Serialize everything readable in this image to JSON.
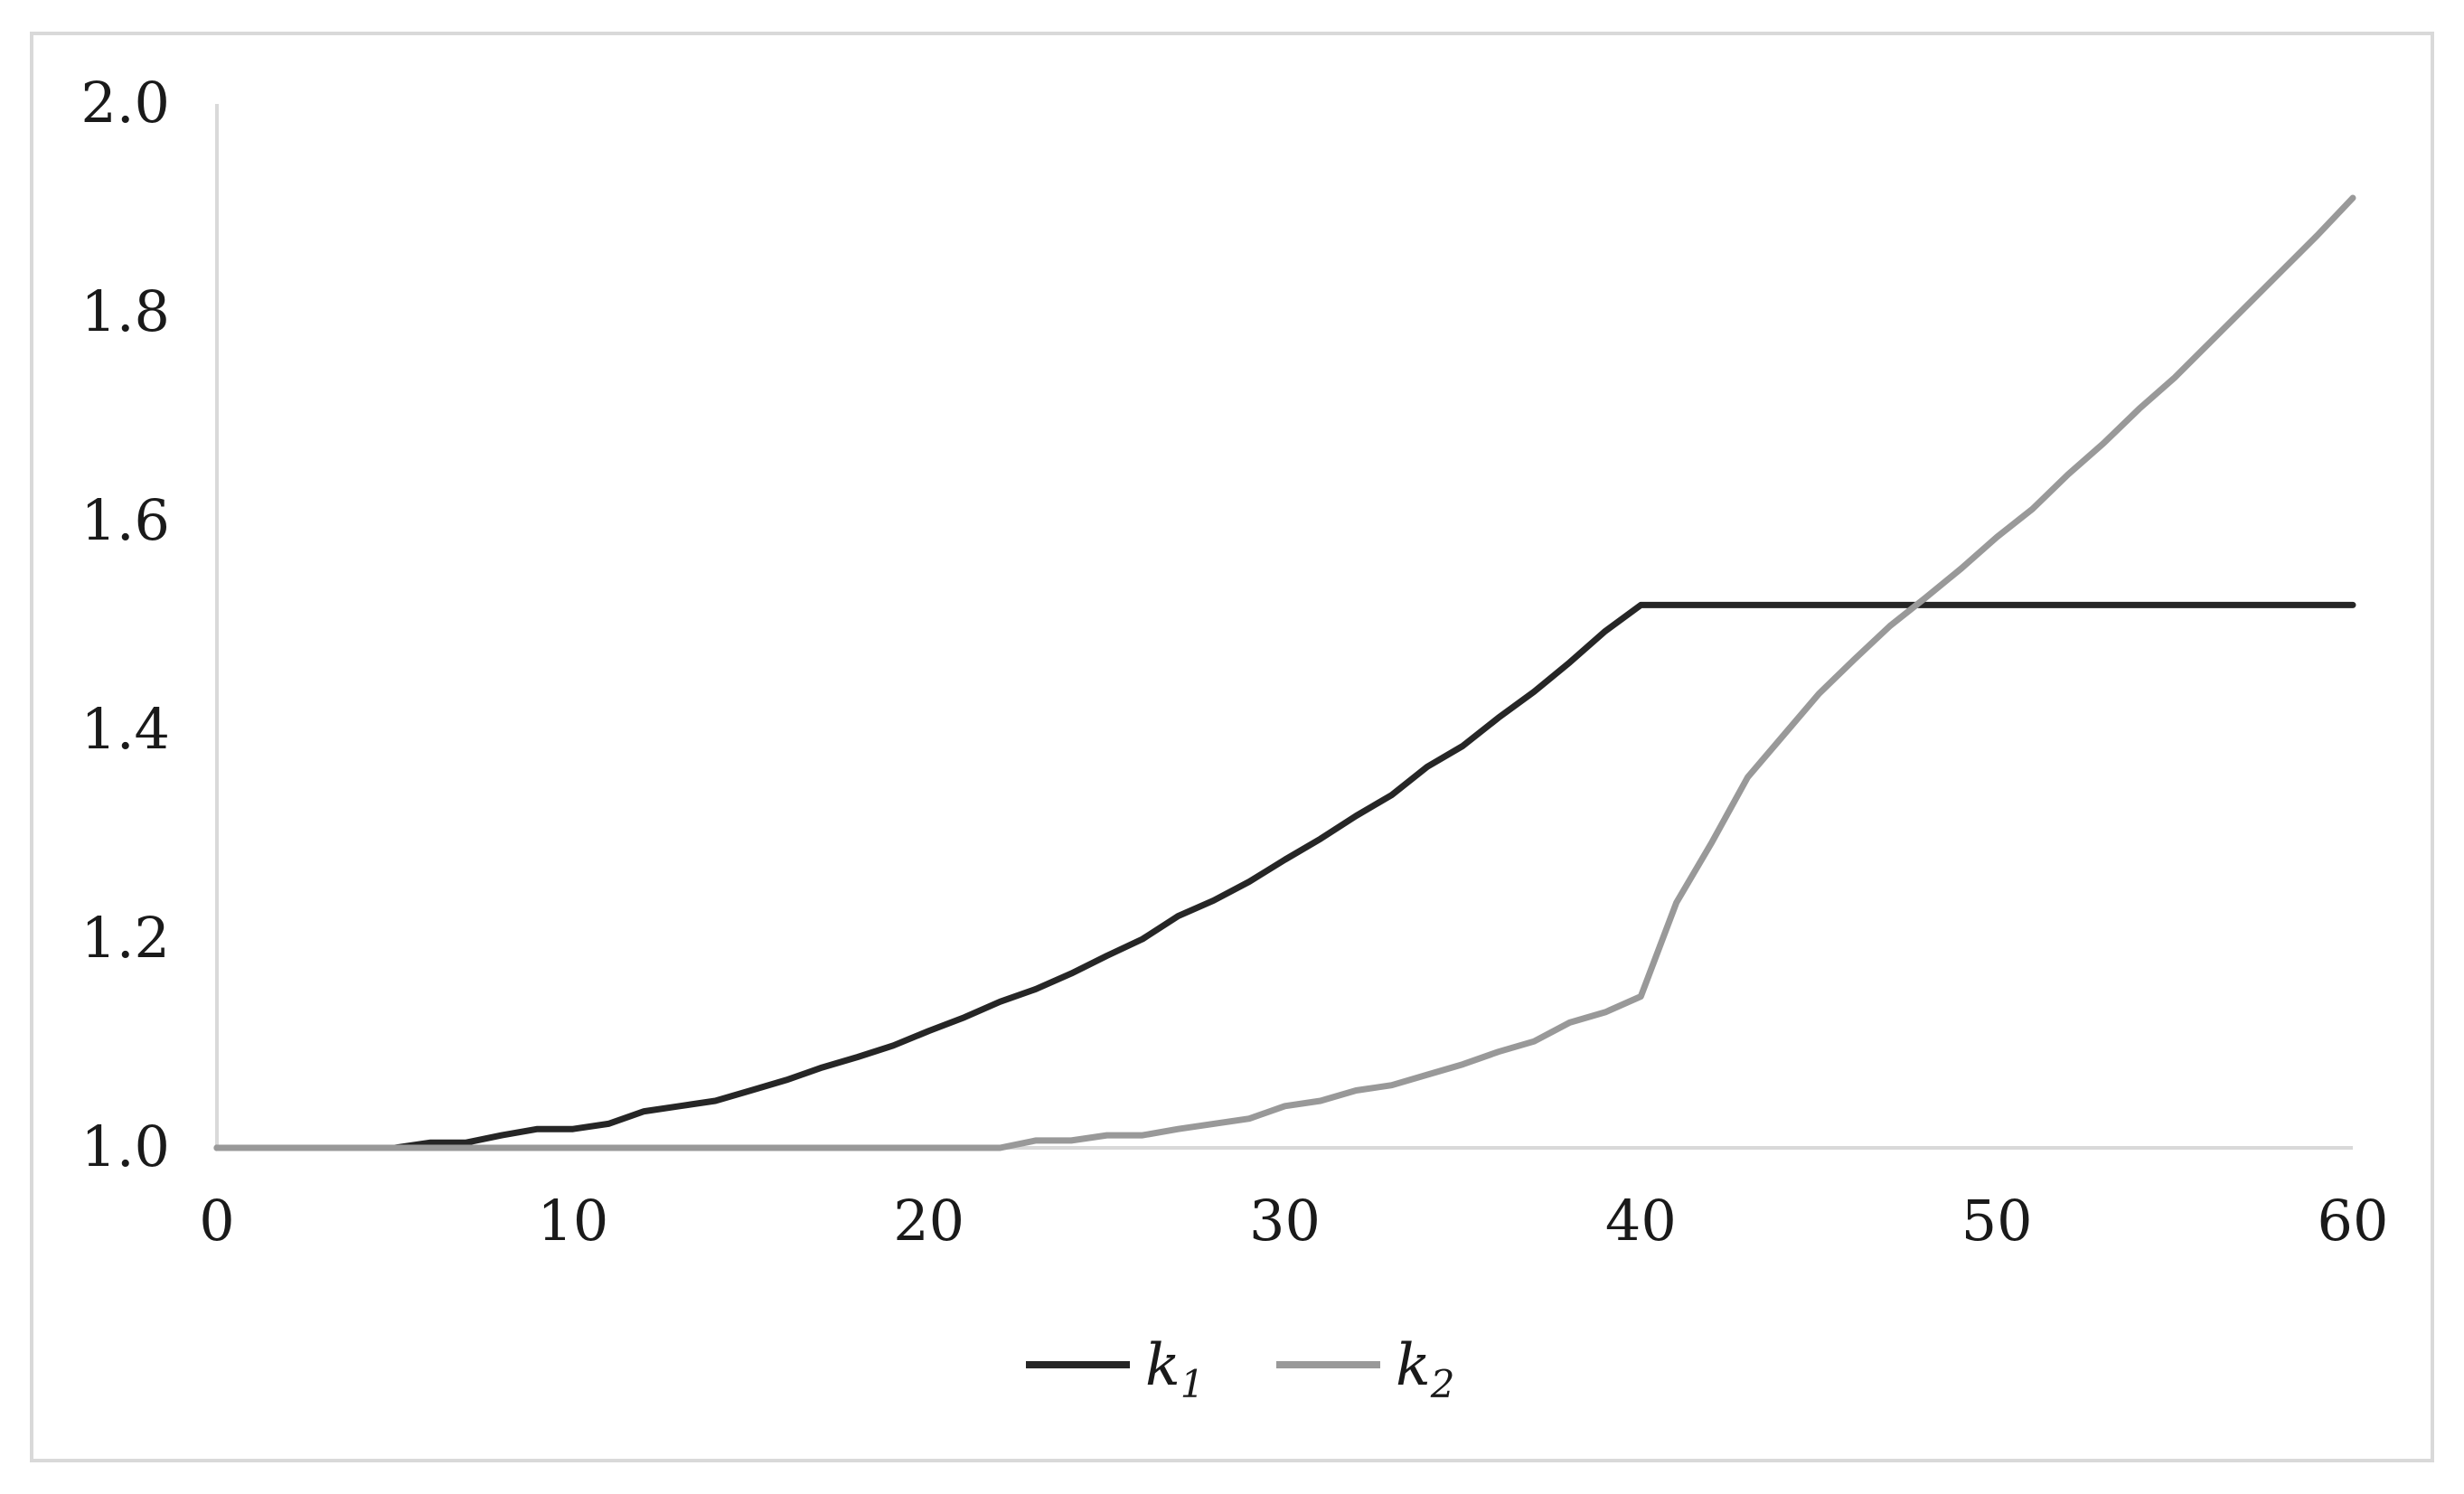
{
  "chart_data": {
    "type": "line",
    "title": "",
    "xlabel": "",
    "ylabel": "",
    "xlim": [
      0,
      60
    ],
    "ylim": [
      1.0,
      2.0
    ],
    "x_ticks": [
      "0",
      "10",
      "20",
      "30",
      "40",
      "50",
      "60"
    ],
    "y_ticks": [
      "1.0",
      "1.2",
      "1.4",
      "1.6",
      "1.8",
      "2.0"
    ],
    "grid": false,
    "legend_position": "bottom-center",
    "x": [
      0,
      1,
      2,
      3,
      4,
      5,
      6,
      7,
      8,
      9,
      10,
      11,
      12,
      13,
      14,
      15,
      16,
      17,
      18,
      19,
      20,
      21,
      22,
      23,
      24,
      25,
      26,
      27,
      28,
      29,
      30,
      31,
      32,
      33,
      34,
      35,
      36,
      37,
      38,
      39,
      40,
      41,
      42,
      43,
      44,
      45,
      46,
      47,
      48,
      49,
      50,
      51,
      52,
      53,
      54,
      55,
      56,
      57,
      58,
      59,
      60
    ],
    "series": [
      {
        "legend_base": "k",
        "legend_sub": "1",
        "color": "#262626",
        "values": [
          1.0,
          1.0,
          1.0,
          1.0,
          1.0,
          1.0,
          1.005,
          1.005,
          1.012,
          1.018,
          1.018,
          1.023,
          1.035,
          1.04,
          1.045,
          1.055,
          1.065,
          1.077,
          1.087,
          1.098,
          1.112,
          1.125,
          1.14,
          1.152,
          1.167,
          1.184,
          1.2,
          1.222,
          1.237,
          1.255,
          1.276,
          1.296,
          1.318,
          1.338,
          1.365,
          1.385,
          1.412,
          1.437,
          1.465,
          1.495,
          1.52,
          1.52,
          1.52,
          1.52,
          1.52,
          1.52,
          1.52,
          1.52,
          1.52,
          1.52,
          1.52,
          1.52,
          1.52,
          1.52,
          1.52,
          1.52,
          1.52,
          1.52,
          1.52,
          1.52,
          1.52
        ]
      },
      {
        "legend_base": "k",
        "legend_sub": "2",
        "color": "#999999",
        "values": [
          1.0,
          1.0,
          1.0,
          1.0,
          1.0,
          1.0,
          1.0,
          1.0,
          1.0,
          1.0,
          1.0,
          1.0,
          1.0,
          1.0,
          1.0,
          1.0,
          1.0,
          1.0,
          1.0,
          1.0,
          1.0,
          1.0,
          1.0,
          1.007,
          1.007,
          1.012,
          1.012,
          1.018,
          1.023,
          1.028,
          1.04,
          1.045,
          1.055,
          1.06,
          1.07,
          1.08,
          1.092,
          1.102,
          1.12,
          1.13,
          1.145,
          1.235,
          1.293,
          1.355,
          1.395,
          1.435,
          1.468,
          1.5,
          1.527,
          1.555,
          1.585,
          1.612,
          1.645,
          1.675,
          1.708,
          1.738,
          1.772,
          1.806,
          1.84,
          1.874,
          1.91
        ]
      }
    ]
  }
}
